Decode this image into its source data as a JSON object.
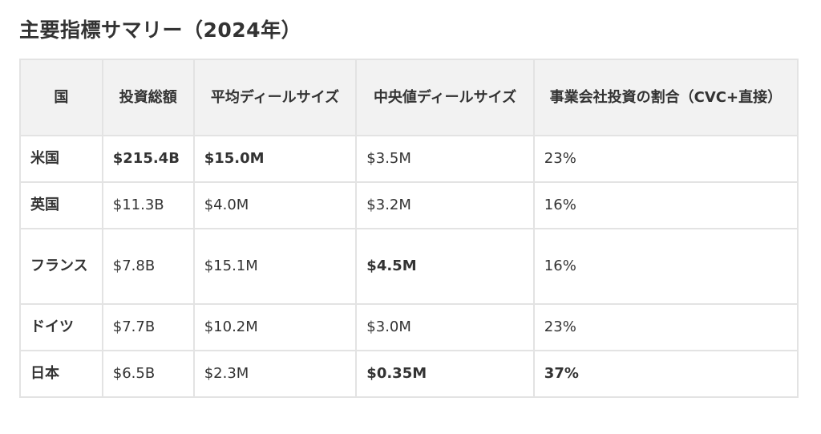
{
  "title": "主要指標サマリー（2024年）",
  "table": {
    "headers": [
      "国",
      "投資総額",
      "平均ディールサイズ",
      "中央値ディールサイズ",
      "事業会社投資の割合（CVC+直接）"
    ],
    "rows": [
      {
        "country": "米国",
        "total": "$215.4B",
        "avg": "$15.0M",
        "median": "$3.5M",
        "corp_share": "23%"
      },
      {
        "country": "英国",
        "total": "$11.3B",
        "avg": "$4.0M",
        "median": "$3.2M",
        "corp_share": "16%"
      },
      {
        "country": "フランス",
        "total": "$7.8B",
        "avg": "$15.1M",
        "median": "$4.5M",
        "corp_share": "16%"
      },
      {
        "country": "ドイツ",
        "total": "$7.7B",
        "avg": "$10.2M",
        "median": "$3.0M",
        "corp_share": "23%"
      },
      {
        "country": "日本",
        "total": "$6.5B",
        "avg": "$2.3M",
        "median": "$0.35M",
        "corp_share": "37%"
      }
    ]
  },
  "colors": {
    "text": "#333333",
    "header_bg": "#f2f2f2",
    "border": "#e3e3e3"
  }
}
